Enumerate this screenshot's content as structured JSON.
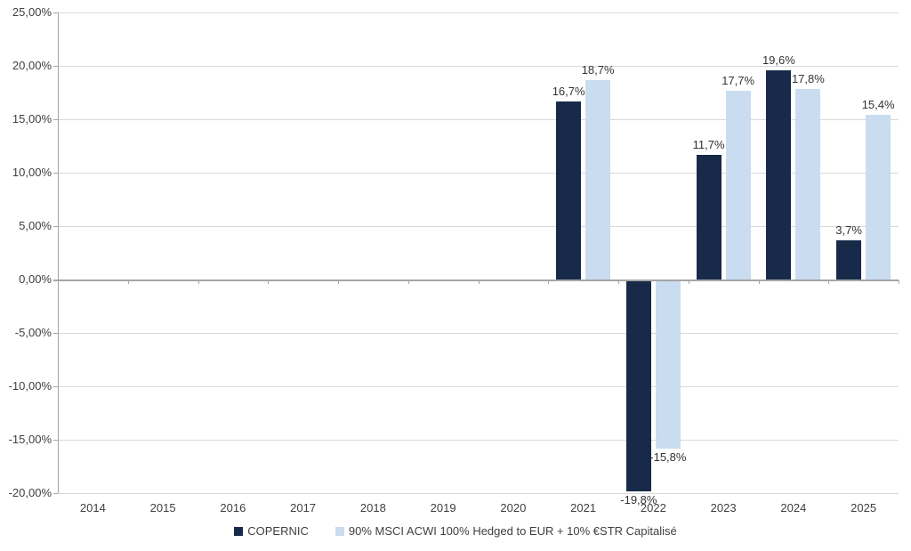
{
  "chart_data": {
    "type": "bar",
    "title": "",
    "xlabel": "",
    "ylabel": "",
    "categories": [
      "2014",
      "2015",
      "2016",
      "2017",
      "2018",
      "2019",
      "2020",
      "2021",
      "2022",
      "2023",
      "2024",
      "2025"
    ],
    "series": [
      {
        "name": "COPERNIC",
        "color": "#172a4a",
        "values": [
          null,
          null,
          null,
          null,
          null,
          null,
          null,
          16.7,
          -19.8,
          11.7,
          19.6,
          3.7
        ],
        "labels": [
          null,
          null,
          null,
          null,
          null,
          null,
          null,
          "16,7%",
          "-19,8%",
          "11,7%",
          "19,6%",
          "3,7%"
        ]
      },
      {
        "name": "90% MSCI ACWI 100% Hedged to EUR + 10% €STR Capitalisé",
        "color": "#c9dcf0",
        "values": [
          null,
          null,
          null,
          null,
          null,
          null,
          null,
          18.7,
          -15.8,
          17.7,
          17.8,
          15.4
        ],
        "labels": [
          null,
          null,
          null,
          null,
          null,
          null,
          null,
          "18,7%",
          "-15,8%",
          "17,7%",
          "17,8%",
          "15,4%"
        ]
      }
    ],
    "ylim": [
      -20,
      25
    ],
    "ytick_step": 5,
    "ytick_labels": [
      "25,00%",
      "20,00%",
      "15,00%",
      "10,00%",
      "5,00%",
      "0,00%",
      "-5,00%",
      "-10,00%",
      "-15,00%",
      "-20,00%"
    ],
    "grid": true,
    "legend_position": "bottom",
    "colors": {
      "gridline": "#d9d9d9",
      "axis": "#a6a6a6",
      "axis_text": "#404040",
      "data_label_text": "#333333"
    }
  }
}
